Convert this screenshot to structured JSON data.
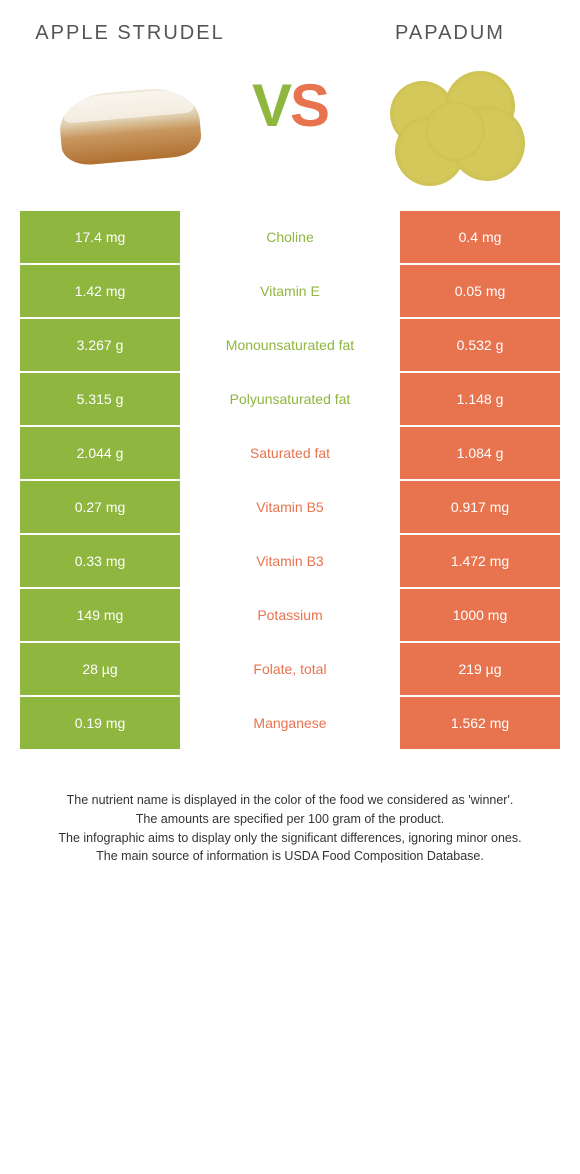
{
  "colors": {
    "left": "#8fb63f",
    "right": "#e8734f",
    "background": "#ffffff"
  },
  "header": {
    "left_title": "Apple strudel",
    "right_title": "Papadum",
    "vs_v": "V",
    "vs_s": "S"
  },
  "rows": [
    {
      "left": "17.4 mg",
      "nutrient": "Choline",
      "right": "0.4 mg",
      "winner": "left"
    },
    {
      "left": "1.42 mg",
      "nutrient": "Vitamin E",
      "right": "0.05 mg",
      "winner": "left"
    },
    {
      "left": "3.267 g",
      "nutrient": "Monounsaturated fat",
      "right": "0.532 g",
      "winner": "left"
    },
    {
      "left": "5.315 g",
      "nutrient": "Polyunsaturated fat",
      "right": "1.148 g",
      "winner": "left"
    },
    {
      "left": "2.044 g",
      "nutrient": "Saturated fat",
      "right": "1.084 g",
      "winner": "right"
    },
    {
      "left": "0.27 mg",
      "nutrient": "Vitamin B5",
      "right": "0.917 mg",
      "winner": "right"
    },
    {
      "left": "0.33 mg",
      "nutrient": "Vitamin B3",
      "right": "1.472 mg",
      "winner": "right"
    },
    {
      "left": "149 mg",
      "nutrient": "Potassium",
      "right": "1000 mg",
      "winner": "right"
    },
    {
      "left": "28 µg",
      "nutrient": "Folate, total",
      "right": "219 µg",
      "winner": "right"
    },
    {
      "left": "0.19 mg",
      "nutrient": "Manganese",
      "right": "1.562 mg",
      "winner": "right"
    }
  ],
  "footer": {
    "line1": "The nutrient name is displayed in the color of the food we considered as 'winner'.",
    "line2": "The amounts are specified per 100 gram of the product.",
    "line3": "The infographic aims to display only the significant differences, ignoring minor ones.",
    "line4": "The main source of information is USDA Food Composition Database."
  }
}
